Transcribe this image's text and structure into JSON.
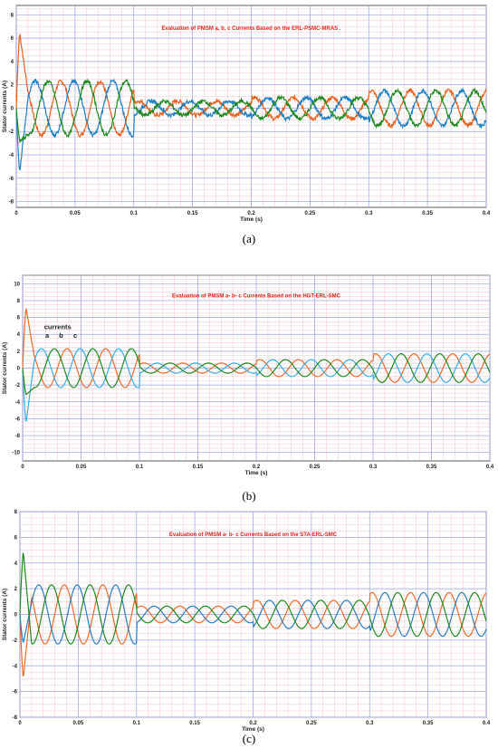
{
  "figure": {
    "panels": [
      {
        "caption": "(a)"
      },
      {
        "caption": "(b)"
      },
      {
        "caption": "(c)"
      }
    ]
  },
  "chart_data": [
    {
      "type": "line",
      "title": "Evaluation of PMSM a, b, c Currents Based on the ERL-PSMC-MRAS .",
      "xlabel": "Time (s)",
      "ylabel": "Stator currents (A)",
      "xlim": [
        0,
        0.4
      ],
      "ylim": [
        -8.5,
        8.8
      ],
      "xticks": [
        0,
        0.05,
        0.1,
        0.15,
        0.2,
        0.25,
        0.3,
        0.35,
        0.4
      ],
      "xtick_labels": [
        "0",
        "0.05",
        "0.1",
        "0.15",
        "0.2",
        "0.25",
        "0.3",
        "0.35",
        "0.4"
      ],
      "yticks": [
        -8,
        -6,
        -4,
        -2,
        0,
        2,
        4,
        6,
        8
      ],
      "yticks_labels": [
        "-8",
        "-6",
        "-4",
        "-2",
        "0",
        "2",
        "4",
        "6",
        "8"
      ],
      "grid": true,
      "series_colors": [
        "#e8601c",
        "#1a7fc4",
        "#1e8a1e"
      ],
      "segments": [
        {
          "t_start": 0.01,
          "t_end": 0.1,
          "amplitude": 2.3
        },
        {
          "t_start": 0.1,
          "t_end": 0.2,
          "amplitude": 0.6
        },
        {
          "t_start": 0.2,
          "t_end": 0.3,
          "amplitude": 0.9
        },
        {
          "t_start": 0.3,
          "t_end": 0.4,
          "amplitude": 1.5
        }
      ],
      "startup_peaks": [
        8.5,
        -8.0,
        -3.0
      ],
      "period_s": 0.033,
      "noise_amplitude": 0.35
    },
    {
      "type": "line",
      "title": "Evaluation of PMSM a- b- c Currents Based on the HGT-ERL-SMC",
      "xlabel": "Time (s)",
      "ylabel": "Stator currents (A)",
      "xlim": [
        0,
        0.4
      ],
      "ylim": [
        -11,
        11
      ],
      "xticks": [
        0,
        0.05,
        0.1,
        0.15,
        0.2,
        0.25,
        0.3,
        0.35,
        0.4
      ],
      "xtick_labels": [
        "0",
        "0.05",
        "0.1",
        "0.15",
        "0.2",
        "0.25",
        "0.3",
        "0.35",
        "0.4"
      ],
      "yticks": [
        -10,
        -8,
        -6,
        -4,
        -2,
        0,
        2,
        4,
        6,
        8,
        10
      ],
      "yticks_labels": [
        "-10",
        "-8",
        "-6",
        "-4",
        "-2",
        "0",
        "2",
        "4",
        "6",
        "8",
        "10"
      ],
      "grid": true,
      "series_colors": [
        "#ef6a2a",
        "#36aee8",
        "#1e8a1e"
      ],
      "annotation": {
        "heading": "currents",
        "labels": [
          "a",
          "b",
          "c"
        ]
      },
      "segments": [
        {
          "t_start": 0.01,
          "t_end": 0.1,
          "amplitude": 2.3
        },
        {
          "t_start": 0.1,
          "t_end": 0.2,
          "amplitude": 0.6
        },
        {
          "t_start": 0.2,
          "t_end": 0.3,
          "amplitude": 1.0
        },
        {
          "t_start": 0.3,
          "t_end": 0.4,
          "amplitude": 1.7
        }
      ],
      "startup_peaks": [
        9.5,
        -9.5,
        -3.5
      ],
      "period_s": 0.033,
      "noise_amplitude": 0
    },
    {
      "type": "line",
      "title": "Evaluation of PMSM a- b- c Currents Based on the STA-ERL-SMC",
      "xlabel": "Time (s)",
      "ylabel": "Stator currents (A)",
      "xlim": [
        0,
        0.4
      ],
      "ylim": [
        -8,
        8
      ],
      "xticks": [
        0,
        0.05,
        0.1,
        0.15,
        0.2,
        0.25,
        0.3,
        0.35,
        0.4
      ],
      "xtick_labels": [
        "0",
        "0.05",
        "0.1",
        "0.15",
        "0.2",
        "0.25",
        "0.3",
        "0.35",
        "0.4"
      ],
      "yticks": [
        -8,
        -6,
        -4,
        -2,
        0,
        2,
        4,
        6,
        8
      ],
      "yticks_labels": [
        "-8",
        "-6",
        "-4",
        "-2",
        "0",
        "2",
        "4",
        "6",
        "8"
      ],
      "grid": true,
      "series_colors": [
        "#ef6a2a",
        "#2a7cc0",
        "#1e8a1e"
      ],
      "segments": [
        {
          "t_start": 0.01,
          "t_end": 0.1,
          "amplitude": 2.3
        },
        {
          "t_start": 0.1,
          "t_end": 0.2,
          "amplitude": 0.65
        },
        {
          "t_start": 0.2,
          "t_end": 0.3,
          "amplitude": 1.1
        },
        {
          "t_start": 0.3,
          "t_end": 0.4,
          "amplitude": 1.7
        }
      ],
      "startup_peaks": [
        -7.5,
        -3.5,
        7.8
      ],
      "period_s": 0.033,
      "noise_amplitude": 0
    }
  ]
}
